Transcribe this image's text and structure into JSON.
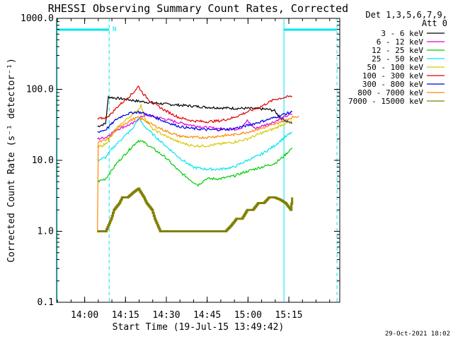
{
  "chart_data": {
    "type": "line",
    "title": "RHESSI Observing Summary Count Rates, Corrected",
    "xlabel": "Start Time (19-Jul-15 13:49:42)",
    "ylabel": "Corrected Count Rate (s⁻¹ detector⁻¹)",
    "x_unit": "minutes since 13:49:42",
    "xlim": [
      0,
      104
    ],
    "ylim": [
      0.1,
      1000
    ],
    "log_y": true,
    "grid": false,
    "x_ticks": [
      {
        "value": 10.3,
        "label": "14:00"
      },
      {
        "value": 25.3,
        "label": "14:15"
      },
      {
        "value": 40.3,
        "label": "14:30"
      },
      {
        "value": 55.3,
        "label": "14:45"
      },
      {
        "value": 70.3,
        "label": "15:00"
      },
      {
        "value": 85.3,
        "label": "15:15"
      }
    ],
    "y_ticks": [
      {
        "value": 0.1,
        "label": "0.1"
      },
      {
        "value": 1,
        "label": "1.0"
      },
      {
        "value": 10,
        "label": "10.0"
      },
      {
        "value": 100,
        "label": "100.0"
      },
      {
        "value": 1000,
        "label": "1000.0"
      }
    ],
    "legend": {
      "placement": "top-right",
      "header": [
        "Det 1,3,5,6,7,9,",
        "Att 0"
      ]
    },
    "annotations": {
      "night_marker": "N",
      "footer_date": "29-Oct-2021 18:02",
      "night_bars": [
        [
          0,
          19.3
        ],
        [
          83.5,
          103
        ]
      ],
      "cyan_solid_lines": [
        0.2,
        83.5
      ],
      "cyan_dashed_lines": [
        19.3,
        103
      ]
    },
    "series": [
      {
        "name": "3 - 6 keV",
        "color": "#000000",
        "x": [
          15,
          18,
          19,
          22,
          25,
          28,
          30,
          35,
          40,
          45,
          50,
          55,
          60,
          65,
          70,
          75,
          78,
          80,
          81,
          82,
          85,
          86.5
        ],
        "y": [
          30,
          33,
          78,
          75,
          73,
          70,
          68,
          65,
          62,
          60,
          58,
          56,
          55,
          54,
          54,
          53,
          52,
          50,
          45,
          40,
          35,
          33
        ]
      },
      {
        "name": "6 - 12 keV",
        "color": "#e000e0",
        "x": [
          15,
          18,
          20,
          22,
          25,
          28,
          30,
          32,
          35,
          40,
          45,
          50,
          55,
          60,
          65,
          68,
          70,
          73,
          75,
          80,
          83,
          86.5
        ],
        "y": [
          20,
          21,
          24,
          27,
          30,
          33,
          38,
          43,
          42,
          38,
          34,
          31,
          29,
          28,
          27,
          29,
          36,
          28,
          30,
          35,
          40,
          45
        ]
      },
      {
        "name": "12 - 25 keV",
        "color": "#00cc00",
        "x": [
          15,
          18,
          20,
          22,
          25,
          28,
          30,
          32,
          35,
          40,
          45,
          50,
          52,
          55,
          60,
          65,
          70,
          75,
          80,
          83,
          86.5
        ],
        "y": [
          5,
          5.5,
          7,
          9,
          12,
          16,
          19,
          18,
          15,
          11,
          7,
          5,
          4.5,
          5.5,
          5.5,
          6,
          7,
          8,
          9,
          11,
          15
        ]
      },
      {
        "name": "25 - 50 keV",
        "color": "#00e5ee",
        "x": [
          15,
          18,
          20,
          22,
          25,
          28,
          30,
          32,
          35,
          40,
          45,
          50,
          55,
          60,
          65,
          70,
          75,
          80,
          83,
          86.5
        ],
        "y": [
          10,
          11,
          14,
          17,
          22,
          28,
          40,
          31,
          24,
          16,
          11,
          8,
          7.5,
          7.5,
          8,
          10,
          12,
          16,
          20,
          25
        ]
      },
      {
        "name": "50 - 100 keV",
        "color": "#d8c800",
        "x": [
          15,
          18,
          20,
          22,
          25,
          28,
          30,
          31,
          32,
          35,
          40,
          45,
          50,
          55,
          60,
          65,
          70,
          75,
          80,
          83,
          86.5
        ],
        "y": [
          15,
          17,
          22,
          28,
          36,
          45,
          52,
          60,
          42,
          28,
          22,
          18,
          16,
          16,
          17,
          18,
          20,
          24,
          28,
          32,
          35
        ]
      },
      {
        "name": "100 - 300 keV",
        "color": "#e00000",
        "x": [
          15,
          18,
          20,
          22,
          25,
          28,
          30,
          32,
          35,
          40,
          45,
          50,
          55,
          60,
          65,
          70,
          75,
          78,
          80,
          83,
          86.5
        ],
        "y": [
          38,
          40,
          45,
          55,
          70,
          88,
          110,
          85,
          65,
          50,
          40,
          36,
          35,
          36,
          40,
          48,
          57,
          66,
          72,
          76,
          80
        ]
      },
      {
        "name": "300 - 800 keV",
        "color": "#0000e0",
        "x": [
          15,
          18,
          20,
          22,
          25,
          28,
          30,
          32,
          35,
          40,
          45,
          50,
          55,
          60,
          65,
          70,
          75,
          80,
          83,
          86.5
        ],
        "y": [
          25,
          27,
          32,
          38,
          44,
          47,
          48,
          46,
          42,
          35,
          30,
          28,
          27,
          27,
          28,
          31,
          35,
          40,
          44,
          48
        ]
      },
      {
        "name": "800 - 7000 keV",
        "color": "#ff8800",
        "x": [
          15,
          15.3,
          18,
          20,
          22,
          25,
          28,
          30,
          32,
          35,
          40,
          45,
          50,
          55,
          60,
          65,
          70,
          75,
          80,
          83,
          86.5,
          87,
          89
        ],
        "y": [
          1,
          18,
          19,
          22,
          27,
          33,
          38,
          40,
          37,
          32,
          26,
          22,
          21,
          21,
          22,
          23,
          25,
          28,
          32,
          36,
          40,
          41,
          42
        ]
      },
      {
        "name": "7000 - 15000 keV",
        "color": "#808000",
        "x": [
          15,
          18,
          20,
          21,
          23,
          24,
          26,
          28,
          30,
          32,
          33,
          35,
          36,
          38,
          40,
          43,
          45,
          48,
          50,
          53,
          56,
          59,
          62,
          64,
          66,
          68,
          70,
          72,
          74,
          76,
          78,
          80,
          82,
          84,
          86,
          86.5
        ],
        "y": [
          1,
          1,
          1.5,
          2,
          2.5,
          3,
          3,
          3.5,
          4,
          3,
          2.5,
          2,
          1.5,
          1,
          1,
          1,
          1,
          1,
          1,
          1,
          1,
          1,
          1,
          1.2,
          1.5,
          1.5,
          2,
          2,
          2.5,
          2.5,
          3,
          3,
          2.8,
          2.5,
          2,
          3
        ]
      }
    ]
  }
}
